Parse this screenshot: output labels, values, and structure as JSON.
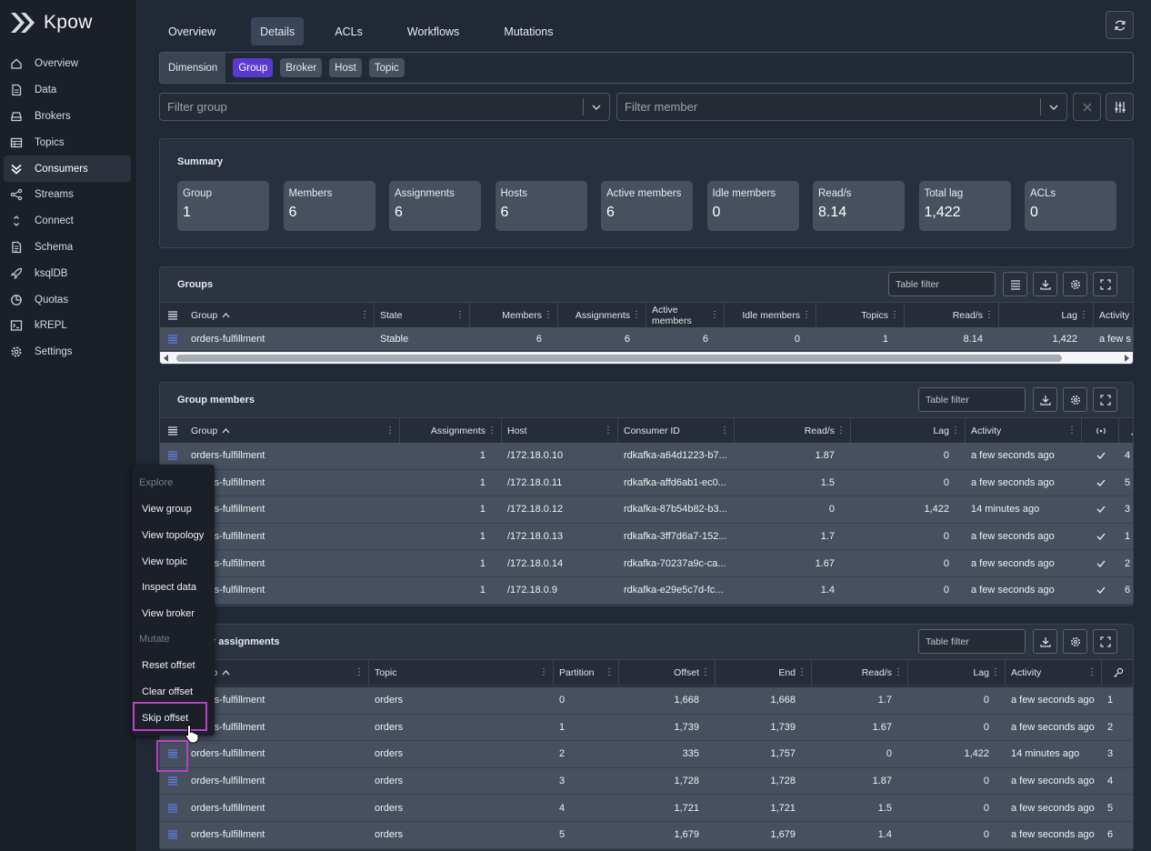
{
  "app": {
    "name": "Kpow"
  },
  "sidebar": {
    "items": [
      {
        "label": "Overview",
        "icon": "home-icon"
      },
      {
        "label": "Data",
        "icon": "document-icon"
      },
      {
        "label": "Brokers",
        "icon": "server-icon"
      },
      {
        "label": "Topics",
        "icon": "table-icon"
      },
      {
        "label": "Consumers",
        "icon": "consumers-icon",
        "active": true
      },
      {
        "label": "Streams",
        "icon": "share-icon"
      },
      {
        "label": "Connect",
        "icon": "connect-icon"
      },
      {
        "label": "Schema",
        "icon": "schema-icon"
      },
      {
        "label": "ksqlDB",
        "icon": "rocket-icon"
      },
      {
        "label": "Quotas",
        "icon": "pie-icon"
      },
      {
        "label": "kREPL",
        "icon": "terminal-icon"
      },
      {
        "label": "Settings",
        "icon": "gear-icon"
      }
    ]
  },
  "tabs": [
    "Overview",
    "Details",
    "ACLs",
    "Workflows",
    "Mutations"
  ],
  "active_tab": "Details",
  "dimension": {
    "label": "Dimension",
    "options": [
      "Group",
      "Broker",
      "Host",
      "Topic"
    ],
    "selected": "Group"
  },
  "filters": {
    "group_placeholder": "Filter group",
    "member_placeholder": "Filter member"
  },
  "summary": {
    "title": "Summary",
    "cards": [
      {
        "label": "Group",
        "value": "1"
      },
      {
        "label": "Members",
        "value": "6"
      },
      {
        "label": "Assignments",
        "value": "6"
      },
      {
        "label": "Hosts",
        "value": "6"
      },
      {
        "label": "Active members",
        "value": "6"
      },
      {
        "label": "Idle members",
        "value": "0"
      },
      {
        "label": "Read/s",
        "value": "8.14"
      },
      {
        "label": "Total lag",
        "value": "1,422"
      },
      {
        "label": "ACLs",
        "value": "0"
      }
    ]
  },
  "groups": {
    "title": "Groups",
    "filter_placeholder": "Table filter",
    "columns": [
      "Group",
      "State",
      "Members",
      "Assignments",
      "Active members",
      "Idle members",
      "Topics",
      "Read/s",
      "Lag",
      "Activity"
    ],
    "rows": [
      [
        "orders-fulfillment",
        "Stable",
        "6",
        "6",
        "6",
        "0",
        "1",
        "8.14",
        "1,422",
        "a few s"
      ]
    ]
  },
  "members": {
    "title": "Group members",
    "filter_placeholder": "Table filter",
    "columns": [
      "Group",
      "Assignments",
      "Host",
      "Consumer ID",
      "Read/s",
      "Lag",
      "Activity"
    ],
    "rows": [
      [
        "orders-fulfillment",
        "1",
        "/172.18.0.10",
        "rdkafka-a64d1223-b7...",
        "1.87",
        "0",
        "a few seconds ago",
        "4"
      ],
      [
        "orders-fulfillment",
        "1",
        "/172.18.0.11",
        "rdkafka-affd6ab1-ec0...",
        "1.5",
        "0",
        "a few seconds ago",
        "5"
      ],
      [
        "orders-fulfillment",
        "1",
        "/172.18.0.12",
        "rdkafka-87b54b82-b3...",
        "0",
        "1,422",
        "14 minutes ago",
        "3"
      ],
      [
        "orders-fulfillment",
        "1",
        "/172.18.0.13",
        "rdkafka-3ff7d6a7-152...",
        "1.7",
        "0",
        "a few seconds ago",
        "1"
      ],
      [
        "orders-fulfillment",
        "1",
        "/172.18.0.14",
        "rdkafka-70237a9c-ca...",
        "1.67",
        "0",
        "a few seconds ago",
        "2"
      ],
      [
        "orders-fulfillment",
        "1",
        "/172.18.0.9",
        "rdkafka-e29e5c7d-fc...",
        "1.4",
        "0",
        "a few seconds ago",
        "6"
      ]
    ]
  },
  "assignments": {
    "title": "Member assignments",
    "filter_placeholder": "Table filter",
    "columns": [
      "Group",
      "Topic",
      "Partition",
      "Offset",
      "End",
      "Read/s",
      "Lag",
      "Activity"
    ],
    "rows": [
      [
        "orders-fulfillment",
        "orders",
        "0",
        "1,668",
        "1,668",
        "1.7",
        "0",
        "a few seconds ago",
        "1"
      ],
      [
        "orders-fulfillment",
        "orders",
        "1",
        "1,739",
        "1,739",
        "1.67",
        "0",
        "a few seconds ago",
        "2"
      ],
      [
        "orders-fulfillment",
        "orders",
        "2",
        "335",
        "1,757",
        "0",
        "1,422",
        "14 minutes ago",
        "3"
      ],
      [
        "orders-fulfillment",
        "orders",
        "3",
        "1,728",
        "1,728",
        "1.87",
        "0",
        "a few seconds ago",
        "4"
      ],
      [
        "orders-fulfillment",
        "orders",
        "4",
        "1,721",
        "1,721",
        "1.5",
        "0",
        "a few seconds ago",
        "5"
      ],
      [
        "orders-fulfillment",
        "orders",
        "5",
        "1,679",
        "1,679",
        "1.4",
        "0",
        "a few seconds ago",
        "6"
      ]
    ]
  },
  "context_menu": {
    "explore_header": "Explore",
    "explore_items": [
      "View group",
      "View topology",
      "View topic",
      "Inspect data",
      "View broker"
    ],
    "mutate_header": "Mutate",
    "mutate_items": [
      "Reset offset",
      "Clear offset",
      "Skip offset"
    ],
    "highlighted": "Skip offset"
  }
}
